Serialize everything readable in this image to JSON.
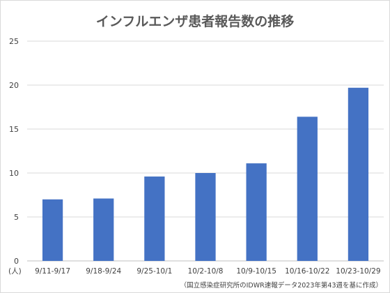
{
  "chart_data": {
    "type": "bar",
    "title": "インフルエンザ患者報告数の推移",
    "categories": [
      "9/11-9/17",
      "9/18-9/24",
      "9/25-10/1",
      "10/2-10/8",
      "10/9-10/15",
      "10/16-10/22",
      "10/23-10/29"
    ],
    "values": [
      7.0,
      7.1,
      9.6,
      10.0,
      11.1,
      16.4,
      19.7
    ],
    "ylim": [
      0,
      25
    ],
    "yticks": [
      0,
      5,
      10,
      15,
      20,
      25
    ],
    "ylabel_unit": "(人)",
    "grid": true,
    "bar_color": "#4472c4",
    "source": "（国立感染症研究所のIDWR速報データ2023年第43週を基に作成）"
  }
}
